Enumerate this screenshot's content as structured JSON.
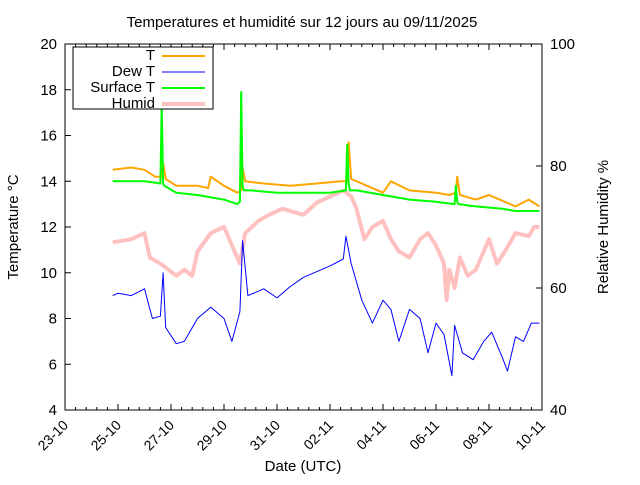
{
  "chart_data": {
    "type": "line",
    "title": "Temperatures et humidité sur 12 jours au 09/11/2025",
    "xlabel": "Date (UTC)",
    "ylabel": "Temperature °C",
    "y2label": "Relative Humidity %",
    "x_unit": "days since 23-10 00:00 UTC",
    "xlim": [
      0,
      18
    ],
    "ylim": [
      4,
      20
    ],
    "y2lim": [
      40,
      100
    ],
    "x_ticks": [
      "23-10",
      "25-10",
      "27-10",
      "29-10",
      "31-10",
      "02-11",
      "04-11",
      "06-11",
      "08-11",
      "10-11"
    ],
    "y_ticks": [
      "4",
      "6",
      "8",
      "10",
      "12",
      "14",
      "16",
      "18",
      "20"
    ],
    "y2_ticks": [
      "40",
      "60",
      "80",
      "100"
    ],
    "legend_position": "top-left",
    "series": [
      {
        "name": "T",
        "axis": "left",
        "color": "#ffa500",
        "x": [
          1.8,
          2.5,
          3.0,
          3.4,
          3.65,
          3.7,
          3.8,
          4.2,
          5.0,
          5.4,
          5.5,
          6.0,
          6.5,
          6.65,
          6.7,
          6.8,
          7.5,
          8.5,
          9.5,
          10.4,
          10.65,
          10.7,
          10.8,
          11.2,
          12.0,
          12.3,
          13.0,
          14.0,
          14.5,
          14.75,
          14.8,
          14.9,
          15.5,
          16.0,
          17.0,
          17.5,
          17.9
        ],
        "y": [
          14.5,
          14.6,
          14.5,
          14.2,
          14.2,
          14.8,
          14.1,
          13.8,
          13.8,
          13.7,
          14.2,
          13.8,
          13.5,
          13.6,
          14.6,
          14.0,
          13.9,
          13.8,
          13.9,
          14.0,
          14.0,
          15.7,
          14.1,
          13.9,
          13.5,
          14.0,
          13.6,
          13.5,
          13.4,
          13.5,
          14.2,
          13.4,
          13.2,
          13.4,
          12.9,
          13.2,
          12.9
        ]
      },
      {
        "name": "Dew T",
        "axis": "left",
        "color": "#0000ff",
        "x": [
          1.8,
          2.0,
          2.5,
          3.0,
          3.3,
          3.6,
          3.7,
          3.8,
          4.2,
          4.5,
          5.0,
          5.5,
          6.0,
          6.3,
          6.6,
          6.7,
          6.9,
          7.5,
          8.0,
          8.5,
          9.0,
          10.0,
          10.5,
          10.6,
          10.8,
          11.2,
          11.6,
          12.0,
          12.3,
          12.6,
          13.0,
          13.4,
          13.7,
          14.0,
          14.3,
          14.6,
          14.7,
          15.0,
          15.4,
          15.8,
          16.1,
          16.5,
          16.7,
          17.0,
          17.3,
          17.6,
          17.9
        ],
        "y": [
          9.0,
          9.1,
          9.0,
          9.3,
          8.0,
          8.1,
          10.0,
          7.6,
          6.9,
          7.0,
          8.0,
          8.5,
          8.0,
          7.0,
          8.3,
          11.4,
          9.0,
          9.3,
          8.9,
          9.4,
          9.8,
          10.3,
          10.6,
          11.6,
          10.4,
          8.8,
          7.8,
          8.8,
          8.4,
          7.0,
          8.4,
          8.0,
          6.5,
          7.8,
          7.3,
          5.5,
          7.7,
          6.5,
          6.2,
          7.0,
          7.4,
          6.3,
          5.7,
          7.2,
          7.0,
          7.8,
          7.8
        ]
      },
      {
        "name": "Surface T",
        "axis": "left",
        "color": "#00ff00",
        "x": [
          1.8,
          3.0,
          3.6,
          3.65,
          3.7,
          3.75,
          4.2,
          5.0,
          6.0,
          6.5,
          6.6,
          6.65,
          6.7,
          6.75,
          7.0,
          8.0,
          9.0,
          10.0,
          10.6,
          10.65,
          10.7,
          10.75,
          11.0,
          12.0,
          13.0,
          14.0,
          14.7,
          14.75,
          14.8,
          14.85,
          15.5,
          16.5,
          17.0,
          17.9
        ],
        "y": [
          14.0,
          14.0,
          13.9,
          17.4,
          13.9,
          13.8,
          13.5,
          13.4,
          13.2,
          13.0,
          13.1,
          17.9,
          13.8,
          13.6,
          13.6,
          13.5,
          13.5,
          13.5,
          13.6,
          15.6,
          13.9,
          13.6,
          13.6,
          13.4,
          13.2,
          13.1,
          13.0,
          13.8,
          13.1,
          13.0,
          12.9,
          12.8,
          12.7,
          12.7
        ]
      },
      {
        "name": "Humid",
        "axis": "right",
        "color": "#ffc0c0",
        "x": [
          1.8,
          2.5,
          3.0,
          3.2,
          3.6,
          4.2,
          4.5,
          4.8,
          5.0,
          5.5,
          6.0,
          6.4,
          6.6,
          6.8,
          7.3,
          7.7,
          8.2,
          9.0,
          9.5,
          10.0,
          10.5,
          10.8,
          11.0,
          11.3,
          11.6,
          12.0,
          12.3,
          12.6,
          13.0,
          13.4,
          13.7,
          14.0,
          14.3,
          14.4,
          14.5,
          14.7,
          14.9,
          15.2,
          15.5,
          16.0,
          16.3,
          16.6,
          17.0,
          17.5,
          17.7,
          17.9
        ],
        "y": [
          67.5,
          68,
          69,
          65,
          64,
          62,
          63,
          62,
          66,
          69,
          70,
          66,
          64,
          69,
          71,
          72,
          73,
          72,
          74,
          75,
          76,
          75,
          73,
          68,
          70,
          71,
          68,
          66,
          65,
          68,
          69,
          67,
          64,
          58,
          63,
          60,
          65,
          62,
          63,
          68,
          64,
          66,
          69,
          68.5,
          70,
          70
        ]
      }
    ]
  }
}
